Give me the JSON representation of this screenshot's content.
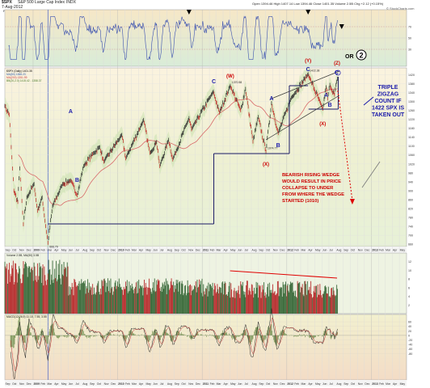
{
  "header": {
    "symbol": "$SPX",
    "description": "S&P 500 Large Cap Index",
    "exchange": "INDX",
    "date": "7-Aug-2012",
    "quote": "Open 1394.46  High 1407.14  Low 1394.46  Close 1401.35  Volume 2.5B  Chg +2.12 (+0.15%)",
    "credit": "© StockCharts.com"
  },
  "panels": {
    "rsi_label": "RSI(14) 65.45",
    "price_legend": [
      "$SPX (Daily) 1401.35",
      "MA(50) 1368.23",
      "MA(200) 1351.99",
      "BB(20,2.0) 1415.42 - 1358.37"
    ],
    "volume_label": "Volume 2.5B, MA(50) 3.5B",
    "macd_label": "MACD(12,26,9) 11.10, 7.55, 3.55"
  },
  "annotations": {
    "waves": [
      {
        "id": "wave-w",
        "text": "(W)",
        "color": "#cc0000"
      },
      {
        "id": "wave-x",
        "text": "(X)",
        "color": "#cc0000"
      },
      {
        "id": "wave-y",
        "text": "(Y)",
        "color": "#cc0000"
      },
      {
        "id": "wave-z",
        "text": "(Z)",
        "color": "#cc0000"
      },
      {
        "id": "wave-x2",
        "text": "(X)",
        "color": "#cc0000"
      },
      {
        "id": "wave-a1",
        "text": "A",
        "color": "#1a1aaa"
      },
      {
        "id": "wave-b1",
        "text": "B",
        "color": "#1a1aaa"
      },
      {
        "id": "wave-c1",
        "text": "C",
        "color": "#1a1aaa"
      },
      {
        "id": "wave-a2",
        "text": "A",
        "color": "#1a1aaa"
      },
      {
        "id": "wave-b2",
        "text": "B",
        "color": "#1a1aaa"
      },
      {
        "id": "wave-c2",
        "text": "C",
        "color": "#1a1aaa"
      },
      {
        "id": "wave-a3",
        "text": "A",
        "color": "#1a1aaa"
      },
      {
        "id": "wave-b3",
        "text": "B",
        "color": "#1a1aaa"
      },
      {
        "id": "wave-c3",
        "text": "C",
        "color": "#1a1aaa"
      }
    ],
    "or_text": "OR",
    "circled_two": "2",
    "triple_zigzag": [
      "TRIPLE",
      "ZIGZAG",
      "COUNT IF",
      "1422 SPX IS",
      "TAKEN OUT"
    ],
    "bearish_wedge": [
      "BEARISH RISING WEDGE",
      "WOULD RESULT IN PRICE",
      "COLLAPSE TO UNDER",
      "FROM WHERE THE WEDGE",
      "STARTED (1010)"
    ],
    "colors": {
      "wave_red": "#cc0000",
      "wave_blue": "#1a1aaa",
      "channel": "#1a1a66",
      "trend": "#dd0000"
    }
  },
  "chart_data": {
    "type": "line",
    "title": "$SPX S&P 500 Large Cap Index INDX",
    "x_range": [
      "2008-09",
      "2013-06"
    ],
    "x_months": [
      "Sep",
      "Oct",
      "Nov",
      "Dec",
      "2009",
      "Feb",
      "Mar",
      "Apr",
      "May",
      "Jun",
      "Jul",
      "Aug",
      "Sep",
      "Oct",
      "Nov",
      "Dec",
      "2010",
      "Feb",
      "Mar",
      "Apr",
      "May",
      "Jun",
      "Jul",
      "Aug",
      "Sep",
      "Oct",
      "Nov",
      "Dec",
      "2011",
      "Feb",
      "Mar",
      "Apr",
      "May",
      "Jun",
      "Jul",
      "Aug",
      "Sep",
      "Oct",
      "Nov",
      "Dec",
      "2012",
      "Feb",
      "Mar",
      "Apr",
      "May",
      "Jun",
      "Jul",
      "Aug",
      "Sep",
      "Oct",
      "Nov",
      "Dec",
      "2013",
      "Feb",
      "Mar",
      "Apr",
      "May"
    ],
    "price": {
      "y_range": [
        650,
        1450
      ],
      "y_ticks": [
        1420,
        1380,
        1340,
        1300,
        1260,
        1220,
        1180,
        1140,
        1100,
        1060,
        1020,
        980,
        940,
        900,
        860,
        820,
        780,
        740,
        700,
        660
      ],
      "series_close": [
        {
          "x": "2008-09-01",
          "y": 1280
        },
        {
          "x": "2008-09-20",
          "y": 1240
        },
        {
          "x": "2008-10-10",
          "y": 900
        },
        {
          "x": "2008-10-27",
          "y": 850
        },
        {
          "x": "2008-11-04",
          "y": 1000
        },
        {
          "x": "2008-11-20",
          "y": 750
        },
        {
          "x": "2008-12-05",
          "y": 870
        },
        {
          "x": "2009-01-05",
          "y": 930
        },
        {
          "x": "2009-01-20",
          "y": 810
        },
        {
          "x": "2009-02-09",
          "y": 870
        },
        {
          "x": "2009-03-06",
          "y": 667
        },
        {
          "x": "2009-03-26",
          "y": 830
        },
        {
          "x": "2009-05-08",
          "y": 930
        },
        {
          "x": "2009-06-12",
          "y": 946
        },
        {
          "x": "2009-07-10",
          "y": 880
        },
        {
          "x": "2009-08-07",
          "y": 1010
        },
        {
          "x": "2009-09-18",
          "y": 1068
        },
        {
          "x": "2009-10-16",
          "y": 1095
        },
        {
          "x": "2009-11-02",
          "y": 1030
        },
        {
          "x": "2010-01-19",
          "y": 1150
        },
        {
          "x": "2010-02-05",
          "y": 1045
        },
        {
          "x": "2010-04-23",
          "y": 1217
        },
        {
          "x": "2010-05-20",
          "y": 1070
        },
        {
          "x": "2010-06-18",
          "y": 1118
        },
        {
          "x": "2010-07-02",
          "y": 1010
        },
        {
          "x": "2010-08-09",
          "y": 1128
        },
        {
          "x": "2010-08-27",
          "y": 1040
        },
        {
          "x": "2010-11-05",
          "y": 1225
        },
        {
          "x": "2010-11-16",
          "y": 1175
        },
        {
          "x": "2011-02-18",
          "y": 1344
        },
        {
          "x": "2011-03-16",
          "y": 1250
        },
        {
          "x": "2011-05-02",
          "y": 1370
        },
        {
          "x": "2011-06-16",
          "y": 1260
        },
        {
          "x": "2011-07-07",
          "y": 1356
        },
        {
          "x": "2011-08-08",
          "y": 1120
        },
        {
          "x": "2011-08-31",
          "y": 1230
        },
        {
          "x": "2011-10-03",
          "y": 1075
        },
        {
          "x": "2011-10-27",
          "y": 1292
        },
        {
          "x": "2011-11-25",
          "y": 1158
        },
        {
          "x": "2012-01-20",
          "y": 1315
        },
        {
          "x": "2012-04-02",
          "y": 1422
        },
        {
          "x": "2012-06-04",
          "y": 1267
        },
        {
          "x": "2012-06-19",
          "y": 1363
        },
        {
          "x": "2012-06-25",
          "y": 1313
        },
        {
          "x": "2012-07-05",
          "y": 1374
        },
        {
          "x": "2012-07-25",
          "y": 1330
        },
        {
          "x": "2012-08-07",
          "y": 1401
        }
      ],
      "labels": [
        {
          "date": "2009-03-06",
          "value": "666.79"
        },
        {
          "date": "2011-05-02",
          "value": "1370.58"
        },
        {
          "date": "2012-04-02",
          "value": "1422.38"
        },
        {
          "date": "2011-10-03",
          "value": "1074.77"
        }
      ]
    },
    "rsi": {
      "y_range": [
        0,
        100
      ],
      "y_ticks": [
        70,
        50,
        30
      ],
      "last": 65.45
    },
    "volume": {
      "y_range": [
        0,
        14
      ],
      "y_ticks": [
        12,
        10,
        8,
        6,
        4,
        2
      ],
      "unit": "B",
      "last": 2.5,
      "ma50": 3.5
    },
    "macd": {
      "values": [
        11.1,
        7.55,
        3.55
      ],
      "y_ticks": [
        60,
        40,
        20,
        0,
        -20,
        -40,
        -60,
        -80
      ]
    }
  }
}
